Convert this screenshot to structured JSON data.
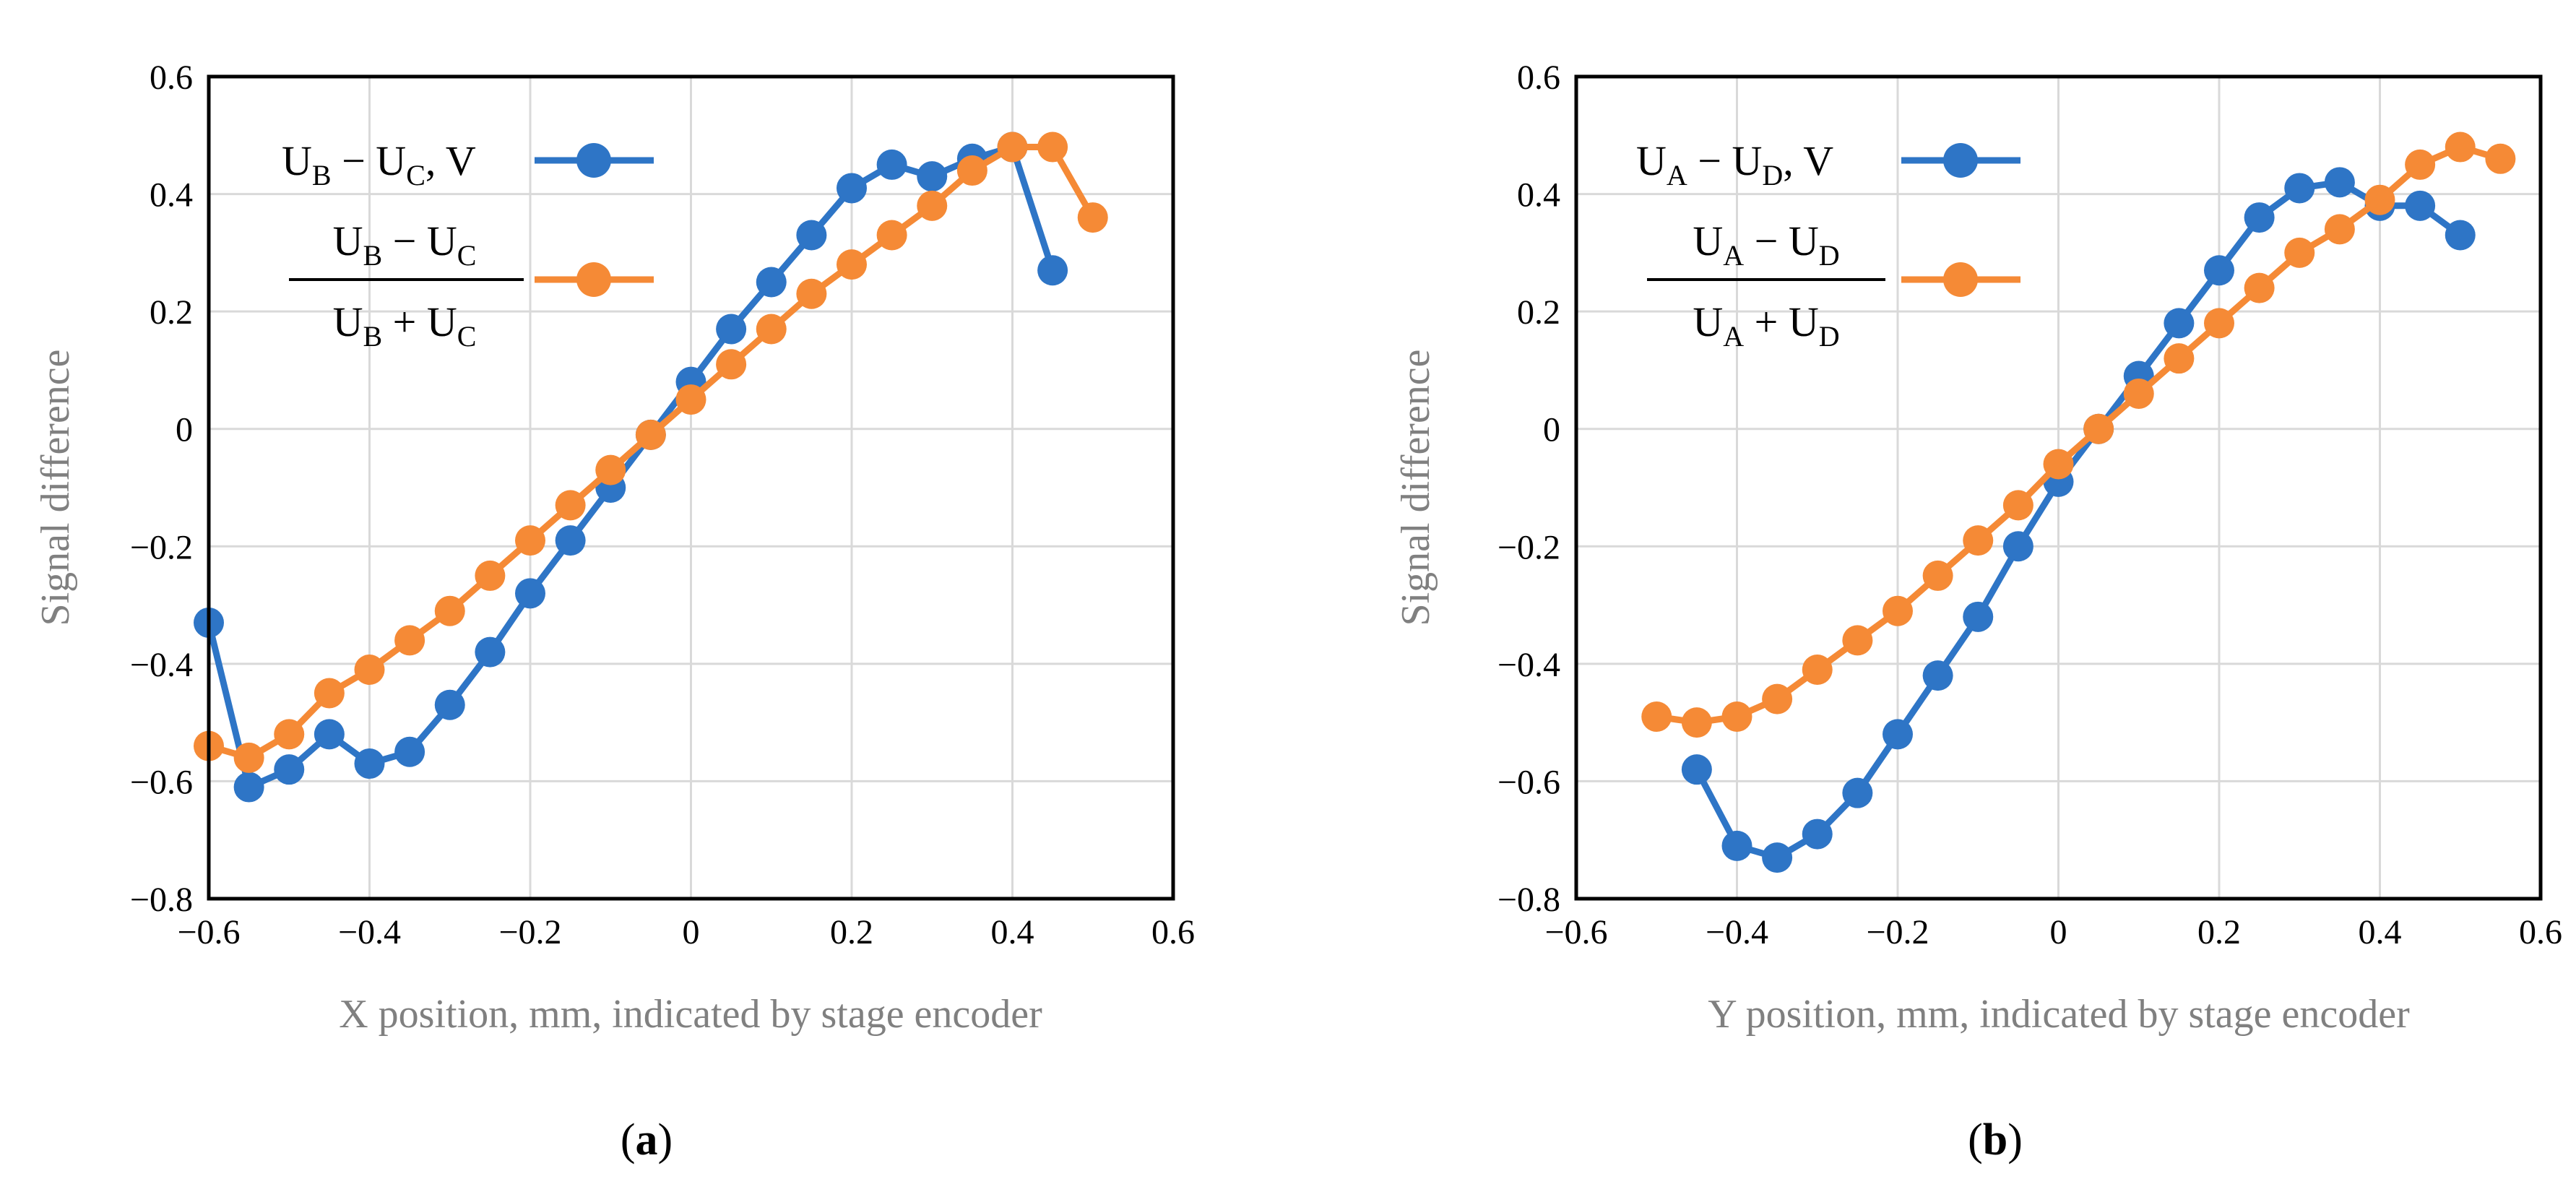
{
  "colors": {
    "series_blue": "#2e75c6",
    "series_orange": "#f58a36",
    "grid": "#d9d9d9",
    "axis_label": "#808080"
  },
  "panels": [
    {
      "label_open": "(",
      "label_letter": "a",
      "label_close": ")"
    },
    {
      "label_open": "(",
      "label_letter": "b",
      "label_close": ")"
    }
  ],
  "chart_data": [
    {
      "type": "line",
      "xlabel": "X position, mm, indicated by stage encoder",
      "ylabel": "Signal difference",
      "xlim": [
        -0.6,
        0.6
      ],
      "ylim": [
        -0.8,
        0.6
      ],
      "xticks": [
        -0.6,
        -0.4,
        -0.2,
        0,
        0.2,
        0.4,
        0.6
      ],
      "yticks": [
        -0.8,
        -0.6,
        -0.4,
        -0.2,
        0,
        0.2,
        0.4,
        0.6
      ],
      "xtick_labels": [
        "−0.6",
        "−0.4",
        "−0.2",
        "0",
        "0.2",
        "0.4",
        "0.6"
      ],
      "ytick_labels": [
        "−0.8",
        "−0.6",
        "−0.4",
        "−0.2",
        "0",
        "0.2",
        "0.4",
        "0.6"
      ],
      "legend_position": "top-left",
      "series": [
        {
          "name": "U_B − U_C, V",
          "legend": {
            "base1": "U",
            "sub1": "B",
            "op": " − ",
            "base2": "U",
            "sub2": "C",
            "suffix": ", V"
          },
          "color": "#2e75c6",
          "x": [
            -0.6,
            -0.55,
            -0.5,
            -0.45,
            -0.4,
            -0.35,
            -0.3,
            -0.25,
            -0.2,
            -0.15,
            -0.1,
            -0.05,
            0,
            0.05,
            0.1,
            0.15,
            0.2,
            0.25,
            0.3,
            0.35,
            0.4,
            0.45
          ],
          "y": [
            -0.33,
            -0.61,
            -0.58,
            -0.52,
            -0.57,
            -0.55,
            -0.47,
            -0.38,
            -0.28,
            -0.19,
            -0.1,
            -0.01,
            0.08,
            0.17,
            0.25,
            0.33,
            0.41,
            0.45,
            0.43,
            0.46,
            0.48,
            0.27
          ]
        },
        {
          "name": "(U_B − U_C)/(U_B + U_C)",
          "legend": {
            "num_base1": "U",
            "num_sub1": "B",
            "num_op": " − ",
            "num_base2": "U",
            "num_sub2": "C",
            "den_base1": "U",
            "den_sub1": "B",
            "den_op": " + ",
            "den_base2": "U",
            "den_sub2": "C"
          },
          "color": "#f58a36",
          "x": [
            -0.6,
            -0.55,
            -0.5,
            -0.45,
            -0.4,
            -0.35,
            -0.3,
            -0.25,
            -0.2,
            -0.15,
            -0.1,
            -0.05,
            0,
            0.05,
            0.1,
            0.15,
            0.2,
            0.25,
            0.3,
            0.35,
            0.4,
            0.45,
            0.5
          ],
          "y": [
            -0.54,
            -0.56,
            -0.52,
            -0.45,
            -0.41,
            -0.36,
            -0.31,
            -0.25,
            -0.19,
            -0.13,
            -0.07,
            -0.01,
            0.05,
            0.11,
            0.17,
            0.23,
            0.28,
            0.33,
            0.38,
            0.44,
            0.48,
            0.48,
            0.36
          ]
        }
      ]
    },
    {
      "type": "line",
      "xlabel": "Y position, mm, indicated by stage encoder",
      "ylabel": "Signal difference",
      "xlim": [
        -0.6,
        0.6
      ],
      "ylim": [
        -0.8,
        0.6
      ],
      "xticks": [
        -0.6,
        -0.4,
        -0.2,
        0,
        0.2,
        0.4,
        0.6
      ],
      "yticks": [
        -0.8,
        -0.6,
        -0.4,
        -0.2,
        0,
        0.2,
        0.4,
        0.6
      ],
      "xtick_labels": [
        "−0.6",
        "−0.4",
        "−0.2",
        "0",
        "0.2",
        "0.4",
        "0.6"
      ],
      "ytick_labels": [
        "−0.8",
        "−0.6",
        "−0.4",
        "−0.2",
        "0",
        "0.2",
        "0.4",
        "0.6"
      ],
      "legend_position": "top-left",
      "series": [
        {
          "name": "U_A − U_D, V",
          "legend": {
            "base1": "U",
            "sub1": "A",
            "op": " − ",
            "base2": "U",
            "sub2": "D",
            "suffix": ", V"
          },
          "color": "#2e75c6",
          "x": [
            -0.45,
            -0.4,
            -0.35,
            -0.3,
            -0.25,
            -0.2,
            -0.15,
            -0.1,
            -0.05,
            0,
            0.05,
            0.1,
            0.15,
            0.2,
            0.25,
            0.3,
            0.35,
            0.4,
            0.45,
            0.5
          ],
          "y": [
            -0.58,
            -0.71,
            -0.73,
            -0.69,
            -0.62,
            -0.52,
            -0.42,
            -0.32,
            -0.2,
            -0.09,
            0.0,
            0.09,
            0.18,
            0.27,
            0.36,
            0.41,
            0.42,
            0.38,
            0.38,
            0.33
          ]
        },
        {
          "name": "(U_A − U_D)/(U_A + U_D)",
          "legend": {
            "num_base1": "U",
            "num_sub1": "A",
            "num_op": " − ",
            "num_base2": "U",
            "num_sub2": "D",
            "den_base1": "U",
            "den_sub1": "A",
            "den_op": " + ",
            "den_base2": "U",
            "den_sub2": "D"
          },
          "color": "#f58a36",
          "x": [
            -0.5,
            -0.45,
            -0.4,
            -0.35,
            -0.3,
            -0.25,
            -0.2,
            -0.15,
            -0.1,
            -0.05,
            0,
            0.05,
            0.1,
            0.15,
            0.2,
            0.25,
            0.3,
            0.35,
            0.4,
            0.45,
            0.5,
            0.55
          ],
          "y": [
            -0.49,
            -0.5,
            -0.49,
            -0.46,
            -0.41,
            -0.36,
            -0.31,
            -0.25,
            -0.19,
            -0.13,
            -0.06,
            0.0,
            0.06,
            0.12,
            0.18,
            0.24,
            0.3,
            0.34,
            0.39,
            0.45,
            0.48,
            0.46
          ]
        }
      ]
    }
  ]
}
